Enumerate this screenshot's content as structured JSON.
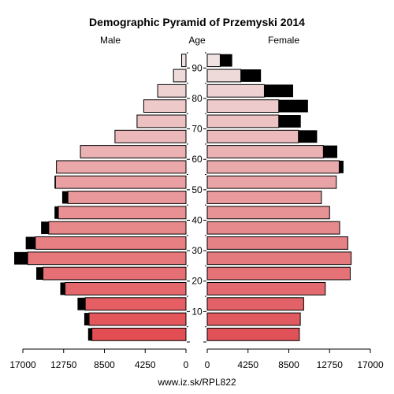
{
  "chart_data": {
    "type": "bar",
    "title": "Demographic Pyramid of Przemyski 2014",
    "left_label": "Male",
    "center_label": "Age",
    "right_label": "Female",
    "footer": "www.iz.sk/RPL822",
    "x_ticks_left": [
      "17000",
      "12750",
      "8500",
      "4250",
      "0"
    ],
    "x_ticks_right": [
      "0",
      "4250",
      "8500",
      "12750",
      "17000"
    ],
    "x_tick_values": [
      0,
      4250,
      8500,
      12750,
      17000
    ],
    "xlim": [
      0,
      17000
    ],
    "age_ticks": [
      10,
      20,
      30,
      40,
      50,
      60,
      70,
      80,
      90
    ],
    "age_groups": [
      "0-4",
      "5-9",
      "10-14",
      "15-19",
      "20-24",
      "25-29",
      "30-34",
      "35-39",
      "40-44",
      "45-49",
      "50-54",
      "55-59",
      "60-64",
      "65-69",
      "70-74",
      "75-79",
      "80-84",
      "85-89",
      "90+"
    ],
    "series": [
      {
        "name": "Male",
        "values": [
          9800,
          10100,
          10500,
          12600,
          14900,
          16500,
          15700,
          14300,
          13300,
          12300,
          13600,
          13500,
          11000,
          7400,
          5100,
          4400,
          2950,
          1300,
          450
        ],
        "excess": [
          400,
          500,
          800,
          500,
          700,
          1400,
          1000,
          800,
          400,
          600,
          100,
          0,
          0,
          0,
          0,
          0,
          0,
          0,
          0
        ]
      },
      {
        "name": "Female",
        "values": [
          9600,
          9700,
          10050,
          12300,
          14900,
          15000,
          14650,
          13800,
          12750,
          11900,
          13450,
          13750,
          12100,
          9500,
          7450,
          7450,
          5950,
          3500,
          1350
        ],
        "excess": [
          0,
          0,
          0,
          0,
          0,
          0,
          0,
          0,
          0,
          0,
          0,
          450,
          1450,
          1950,
          2300,
          3050,
          3000,
          2100,
          1250
        ]
      }
    ]
  }
}
